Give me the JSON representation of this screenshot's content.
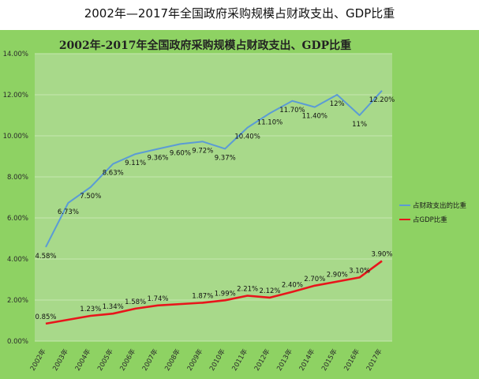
{
  "page_title": "2002年—2017年全国政府采购规模占财政支出、GDP比重",
  "chart_data": {
    "type": "line",
    "title": "2002年-2017年全国政府采购规模占财政支出、GDP比重",
    "xlabel": "",
    "ylabel": "",
    "categories": [
      "2002年",
      "2003年",
      "2004年",
      "2005年",
      "2006年",
      "2007年",
      "2008年",
      "2009年",
      "2010年",
      "2011年",
      "2012年",
      "2013年",
      "2014年",
      "2015年",
      "2016年",
      "2017年"
    ],
    "ylim": [
      0,
      14
    ],
    "y_ticks": [
      "0.00%",
      "2.00%",
      "4.00%",
      "6.00%",
      "8.00%",
      "10.00%",
      "12.00%",
      "14.00%"
    ],
    "grid": true,
    "legend_position": "right",
    "series": [
      {
        "name": "占财政支出的比重",
        "color": "#5b9bd5",
        "points": [
          {
            "x": "2002年",
            "y": 4.58,
            "label": "4.58%"
          },
          {
            "x": "2003年",
            "y": 6.73,
            "label": "6.73%"
          },
          {
            "x": "2004年",
            "y": 7.5,
            "label": "7.50%"
          },
          {
            "x": "2005年",
            "y": 8.63,
            "label": "8.63%"
          },
          {
            "x": "2006年",
            "y": 9.11,
            "label": "9.11%"
          },
          {
            "x": "2007年",
            "y": 9.36,
            "label": "9.36%"
          },
          {
            "x": "2008年",
            "y": 9.6,
            "label": "9.60%"
          },
          {
            "x": "2009年",
            "y": 9.72,
            "label": "9.72%"
          },
          {
            "x": "2010年",
            "y": 9.37,
            "label": "9.37%"
          },
          {
            "x": "2011年",
            "y": 10.4,
            "label": "10.40%"
          },
          {
            "x": "2012年",
            "y": 11.1,
            "label": "11.10%"
          },
          {
            "x": "2013年",
            "y": 11.7,
            "label": "11.70%"
          },
          {
            "x": "2014年",
            "y": 11.4,
            "label": "11.40%"
          },
          {
            "x": "2015年",
            "y": 12.0,
            "label": "12%"
          },
          {
            "x": "2016年",
            "y": 11.0,
            "label": "11%"
          },
          {
            "x": "2017年",
            "y": 12.2,
            "label": "12.20%"
          }
        ]
      },
      {
        "name": "占GDP比重",
        "color": "#e8151b",
        "points": [
          {
            "x": "2002年",
            "y": 0.85,
            "label": "0.85%"
          },
          {
            "x": "2004年",
            "y": 1.23,
            "label": "1.23%"
          },
          {
            "x": "2005年",
            "y": 1.34,
            "label": "1.34%"
          },
          {
            "x": "2006年",
            "y": 1.58,
            "label": "1.58%"
          },
          {
            "x": "2007年",
            "y": 1.74,
            "label": "1.74%"
          },
          {
            "x": "2009年",
            "y": 1.87,
            "label": "1.87%"
          },
          {
            "x": "2010年",
            "y": 1.99,
            "label": "1.99%"
          },
          {
            "x": "2011年",
            "y": 2.21,
            "label": "2.21%"
          },
          {
            "x": "2012年",
            "y": 2.12,
            "label": "2.12%"
          },
          {
            "x": "2013年",
            "y": 2.4,
            "label": "2.40%"
          },
          {
            "x": "2014年",
            "y": 2.7,
            "label": "2.70%"
          },
          {
            "x": "2015年",
            "y": 2.9,
            "label": "2.90%"
          },
          {
            "x": "2016年",
            "y": 3.1,
            "label": "3.10%"
          },
          {
            "x": "2017年",
            "y": 3.9,
            "label": "3.90%"
          }
        ]
      }
    ],
    "colors": {
      "outer_background": "#8ed263",
      "plot_background": "#a8d98a",
      "gridline": "#c6e8b0"
    }
  }
}
